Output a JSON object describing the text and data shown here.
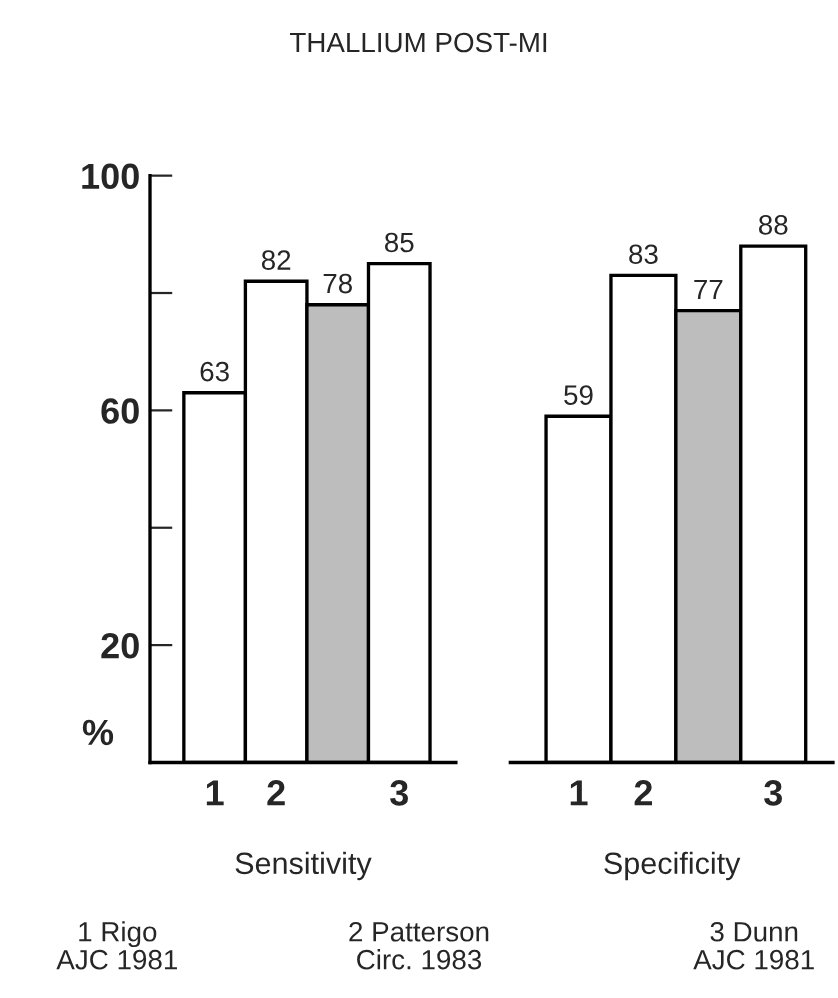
{
  "chart_data": [
    {
      "type": "bar",
      "title": "THALLIUM POST-MI",
      "xlabel": "Sensitivity",
      "ylabel": "%",
      "categories": [
        "1",
        "2",
        null,
        "3"
      ],
      "values": [
        63,
        82,
        78,
        85
      ],
      "colors": [
        "#ffffff",
        "#ffffff",
        "#bdbdbd",
        "#ffffff"
      ],
      "data_labels": true,
      "ylim": [
        0,
        100
      ],
      "yticks": [
        {
          "value": 20,
          "label": "20"
        },
        {
          "value": 40,
          "label": null
        },
        {
          "value": 60,
          "label": "60"
        },
        {
          "value": 80,
          "label": null
        },
        {
          "value": 100,
          "label": "100"
        }
      ],
      "grid": false,
      "legend": false,
      "annotations": [
        "1 Rigo\nAJC 1981",
        "2 Patterson\nCirc. 1983",
        "3 Dunn\nAJC 1981"
      ]
    },
    {
      "type": "bar",
      "xlabel": "Specificity",
      "categories": [
        "1",
        "2",
        null,
        "3"
      ],
      "values": [
        59,
        83,
        77,
        88
      ],
      "colors": [
        "#ffffff",
        "#ffffff",
        "#bdbdbd",
        "#ffffff"
      ],
      "data_labels": true,
      "ylim": [
        0,
        100
      ],
      "tick_labels": "x",
      "grid": false,
      "legend": false
    }
  ]
}
